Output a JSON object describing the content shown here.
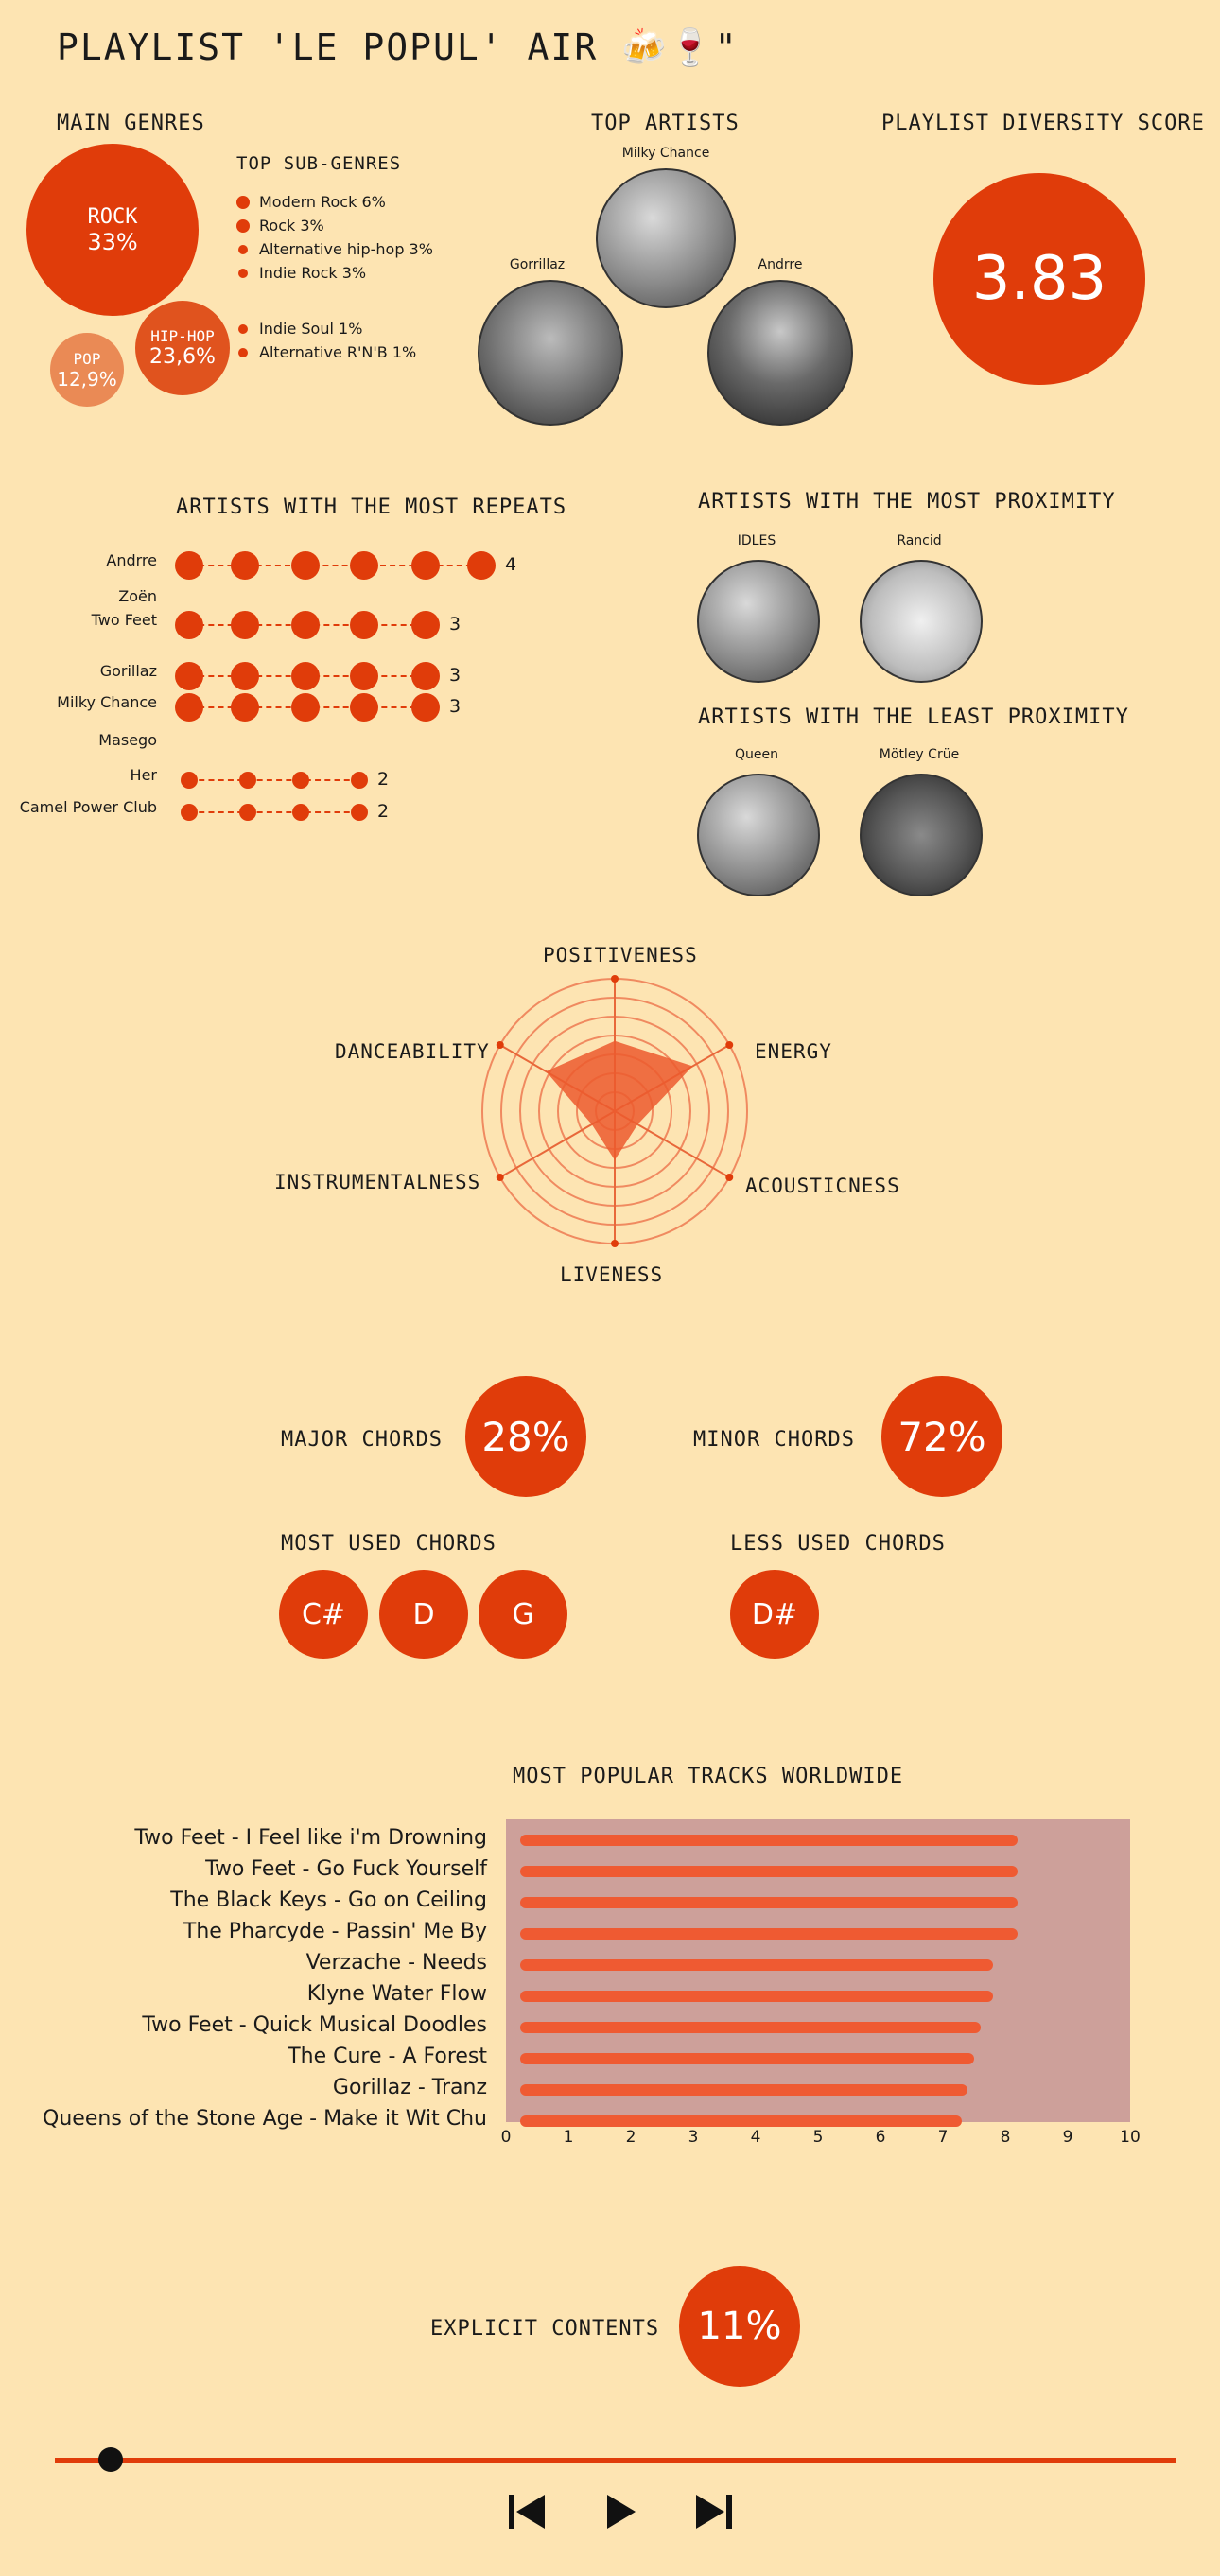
{
  "title": "PLAYLIST 'LE POPUL' AIR 🍻🍷\"",
  "genres": {
    "heading": "MAIN GENRES",
    "items": [
      {
        "name": "ROCK",
        "pct": "33%"
      },
      {
        "name": "POP",
        "pct": "12,9%"
      },
      {
        "name": "HIP-HOP",
        "pct": "23,6%"
      }
    ]
  },
  "subgenres": {
    "heading": "TOP SUB-GENRES",
    "group1": [
      "Modern Rock 6%",
      "Rock 3%",
      "Alternative hip-hop 3%",
      "Indie Rock 3%"
    ],
    "group2": [
      "Indie Soul 1%",
      "Alternative R'N'B 1%"
    ]
  },
  "top_artists": {
    "heading": "TOP ARTISTS",
    "names": [
      "Milky Chance",
      "Gorrillaz",
      "Andrre"
    ]
  },
  "diversity": {
    "heading": "PLAYLIST DIVERSITY SCORE",
    "score": "3.83"
  },
  "repeats": {
    "heading": "ARTISTS WITH THE MOST REPEATS",
    "rows": [
      {
        "artist": "Andrre",
        "count": "4",
        "dots": 6
      },
      {
        "artist": "Zoën",
        "count": "",
        "dots": 0
      },
      {
        "artist": "Two Feet",
        "count": "3",
        "dots": 5
      },
      {
        "artist": "Gorillaz",
        "count": "3",
        "dots": 5
      },
      {
        "artist": "Milky Chance",
        "count": "3",
        "dots": 5
      },
      {
        "artist": "Masego",
        "count": "",
        "dots": 0
      },
      {
        "artist": "Her",
        "count": "2",
        "dots": 4
      },
      {
        "artist": "Camel Power Club",
        "count": "2",
        "dots": 4
      }
    ]
  },
  "proximity": {
    "most_heading": "ARTISTS WITH THE MOST PROXIMITY",
    "most": [
      "IDLES",
      "Rancid"
    ],
    "least_heading": "ARTISTS WITH THE LEAST PROXIMITY",
    "least": [
      "Queen",
      "Mötley Crüe"
    ]
  },
  "radar": {
    "axes": [
      "POSITIVENESS",
      "ENERGY",
      "ACOUSTICNESS",
      "LIVENESS",
      "INSTRUMENTALNESS",
      "DANCEABILITY"
    ],
    "values": [
      0.53,
      0.68,
      0.2,
      0.37,
      0.2,
      0.6
    ]
  },
  "chords": {
    "major_label": "MAJOR CHORDS",
    "major_pct": "28%",
    "minor_label": "MINOR CHORDS",
    "minor_pct": "72%",
    "most_heading": "MOST USED CHORDS",
    "most": [
      "C#",
      "D",
      "G"
    ],
    "less_heading": "LESS USED CHORDS",
    "less": [
      "D#"
    ]
  },
  "explicit": {
    "label": "EXPLICIT CONTENTS",
    "pct": "11%"
  },
  "player": {
    "progress": 0.05
  },
  "colors": {
    "accent": "#e03c0a",
    "bg": "#fde4b2",
    "bar_bg": "#cda09a",
    "bar": "#ef5a32"
  },
  "chart_data": {
    "type": "bar",
    "orientation": "horizontal",
    "title": "MOST POPULAR TRACKS WORLDWIDE",
    "categories": [
      "Two Feet - I Feel like i'm Drowning",
      "Two Feet - Go Fuck Yourself",
      "The Black Keys - Go on Ceiling",
      "The Pharcyde - Passin' Me By",
      "Verzache - Needs",
      "Klyne Water Flow",
      "Two Feet - Quick Musical Doodles",
      "The Cure - A Forest",
      "Gorillaz - Tranz",
      "Queens of the Stone Age - Make it Wit Chu"
    ],
    "values": [
      8.2,
      8.2,
      8.2,
      8.2,
      7.8,
      7.8,
      7.6,
      7.5,
      7.4,
      7.3
    ],
    "xlim": [
      0,
      10
    ],
    "xticks": [
      "0",
      "1",
      "2",
      "3",
      "4",
      "5",
      "6",
      "7",
      "8",
      "9",
      "10"
    ]
  }
}
